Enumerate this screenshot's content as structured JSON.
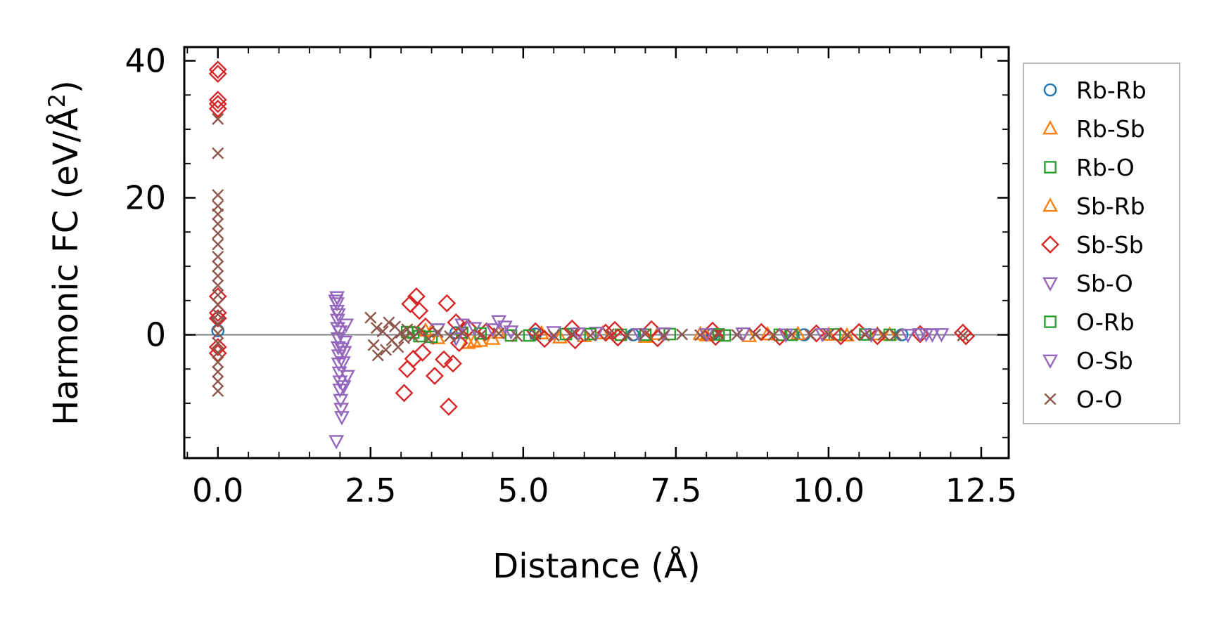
{
  "chart_data": {
    "type": "scatter",
    "title": "",
    "xlabel": "Distance (Å)",
    "ylabel": "Harmonic FC (eV/Å²)",
    "ylabel_main": "Harmonic FC (eV/Å",
    "ylabel_sup": "2",
    "ylabel_end": ")",
    "xlim": [
      -0.55,
      12.95
    ],
    "ylim": [
      -18,
      42
    ],
    "xticks": [
      0.0,
      2.5,
      5.0,
      7.5,
      10.0,
      12.5
    ],
    "xtick_labels": [
      "0.0",
      "2.5",
      "5.0",
      "7.5",
      "10.0",
      "12.5"
    ],
    "yticks": [
      0,
      20,
      40
    ],
    "ytick_labels": [
      "0",
      "20",
      "40"
    ],
    "reference_line_y": 0,
    "legend_position": "right, outside the axes",
    "series": [
      {
        "name": "Rb-Rb",
        "color": "#1f77b4",
        "marker": "circle",
        "points": [
          [
            0.0,
            2.4
          ],
          [
            0.0,
            0.6
          ],
          [
            3.9,
            0.3
          ],
          [
            5.2,
            0.1
          ],
          [
            6.8,
            0.0
          ],
          [
            8.1,
            0.05
          ],
          [
            9.6,
            0.0
          ],
          [
            11.2,
            0.0
          ]
        ]
      },
      {
        "name": "Rb-Sb",
        "color": "#ff7f0e",
        "marker": "triangle-up",
        "points": [
          [
            3.4,
            0.6
          ],
          [
            3.6,
            -0.5
          ],
          [
            4.1,
            -1.2
          ],
          [
            4.3,
            -0.9
          ],
          [
            4.6,
            0.3
          ],
          [
            5.6,
            -0.4
          ],
          [
            6.3,
            0.2
          ],
          [
            7.0,
            -0.3
          ],
          [
            7.9,
            0.1
          ],
          [
            8.7,
            -0.2
          ],
          [
            9.5,
            0.1
          ],
          [
            10.3,
            -0.1
          ],
          [
            11.0,
            0.0
          ]
        ]
      },
      {
        "name": "Rb-O",
        "color": "#2ca02c",
        "marker": "square",
        "points": [
          [
            3.1,
            0.4
          ],
          [
            3.3,
            -0.2
          ],
          [
            4.0,
            0.3
          ],
          [
            4.8,
            -0.1
          ],
          [
            5.7,
            0.1
          ],
          [
            6.6,
            0.0
          ],
          [
            7.4,
            0.1
          ],
          [
            8.3,
            -0.1
          ],
          [
            9.2,
            0.0
          ],
          [
            10.1,
            0.05
          ],
          [
            11.0,
            0.0
          ]
        ]
      },
      {
        "name": "Sb-Rb",
        "color": "#ff7f0e",
        "marker": "triangle-up",
        "points": [
          [
            3.5,
            0.5
          ],
          [
            4.2,
            -1.0
          ],
          [
            4.5,
            -0.6
          ],
          [
            5.3,
            0.2
          ],
          [
            6.0,
            -0.2
          ],
          [
            7.2,
            0.1
          ],
          [
            8.0,
            -0.1
          ],
          [
            9.0,
            0.05
          ],
          [
            10.0,
            0.0
          ],
          [
            10.8,
            0.05
          ]
        ]
      },
      {
        "name": "Sb-Sb",
        "color": "#d62728",
        "marker": "diamond",
        "points": [
          [
            0.0,
            38.7
          ],
          [
            0.0,
            38.1
          ],
          [
            0.0,
            34.3
          ],
          [
            0.0,
            33.7
          ],
          [
            0.0,
            33.0
          ],
          [
            0.0,
            5.6
          ],
          [
            0.0,
            3.2
          ],
          [
            0.0,
            2.4
          ],
          [
            0.0,
            -1.8
          ],
          [
            0.0,
            -2.7
          ],
          [
            3.05,
            -8.5
          ],
          [
            3.1,
            -5.0
          ],
          [
            3.15,
            4.5
          ],
          [
            3.2,
            -3.5
          ],
          [
            3.25,
            5.6
          ],
          [
            3.3,
            3.5
          ],
          [
            3.35,
            -2.6
          ],
          [
            3.4,
            1.2
          ],
          [
            3.55,
            -6.0
          ],
          [
            3.7,
            -3.6
          ],
          [
            3.75,
            4.6
          ],
          [
            3.78,
            -10.5
          ],
          [
            3.85,
            -4.2
          ],
          [
            3.9,
            1.8
          ],
          [
            3.95,
            -1.2
          ],
          [
            4.1,
            1.0
          ],
          [
            4.4,
            0.5
          ],
          [
            5.2,
            0.5
          ],
          [
            5.35,
            -0.6
          ],
          [
            5.8,
            0.9
          ],
          [
            5.85,
            -0.8
          ],
          [
            6.35,
            0.3
          ],
          [
            6.5,
            0.7
          ],
          [
            6.55,
            -0.4
          ],
          [
            7.1,
            0.8
          ],
          [
            7.2,
            -0.5
          ],
          [
            8.1,
            0.6
          ],
          [
            8.15,
            -0.3
          ],
          [
            8.9,
            0.4
          ],
          [
            9.2,
            -0.3
          ],
          [
            9.8,
            0.2
          ],
          [
            10.2,
            -0.2
          ],
          [
            10.5,
            0.4
          ],
          [
            10.8,
            -0.2
          ],
          [
            11.5,
            0.1
          ],
          [
            12.2,
            0.3
          ],
          [
            12.25,
            -0.2
          ]
        ]
      },
      {
        "name": "Sb-O",
        "color": "#9467bd",
        "marker": "triangle-down",
        "points": [
          [
            1.95,
            5.5
          ],
          [
            1.95,
            4.6
          ],
          [
            1.95,
            3.5
          ],
          [
            1.96,
            2.2
          ],
          [
            1.96,
            1.0
          ],
          [
            1.97,
            -0.5
          ],
          [
            1.97,
            -1.8
          ],
          [
            1.98,
            -3.0
          ],
          [
            1.98,
            -4.2
          ],
          [
            1.99,
            -5.5
          ],
          [
            2.0,
            -6.8
          ],
          [
            2.0,
            -8.0
          ],
          [
            2.01,
            -9.5
          ],
          [
            2.02,
            -10.8
          ],
          [
            2.03,
            -12.0
          ],
          [
            1.94,
            -15.5
          ],
          [
            2.05,
            -4.0
          ],
          [
            2.07,
            -2.5
          ],
          [
            2.08,
            -1.0
          ],
          [
            2.1,
            1.5
          ],
          [
            2.12,
            -6.0
          ],
          [
            4.0,
            1.5
          ],
          [
            4.5,
            0.8
          ],
          [
            4.6,
            2.0
          ],
          [
            4.7,
            1.2
          ],
          [
            5.5,
            0.4
          ],
          [
            6.2,
            0.3
          ],
          [
            7.3,
            0.2
          ],
          [
            8.6,
            0.2
          ],
          [
            9.9,
            0.1
          ],
          [
            11.5,
            0.1
          ],
          [
            11.7,
            0.05
          ],
          [
            11.85,
            0.1
          ]
        ]
      },
      {
        "name": "O-Rb",
        "color": "#2ca02c",
        "marker": "square",
        "points": [
          [
            3.2,
            0.3
          ],
          [
            3.5,
            -0.3
          ],
          [
            4.3,
            0.2
          ],
          [
            5.1,
            -0.1
          ],
          [
            6.1,
            0.1
          ],
          [
            7.0,
            0.0
          ],
          [
            8.2,
            0.05
          ],
          [
            9.4,
            0.0
          ],
          [
            10.6,
            0.05
          ]
        ]
      },
      {
        "name": "O-Sb",
        "color": "#9467bd",
        "marker": "triangle-down",
        "points": [
          [
            1.93,
            5.0
          ],
          [
            1.97,
            3.0
          ],
          [
            2.0,
            0.5
          ],
          [
            2.03,
            -2.0
          ],
          [
            2.06,
            -7.5
          ],
          [
            3.6,
            0.8
          ],
          [
            3.9,
            -0.5
          ],
          [
            4.2,
            1.0
          ],
          [
            4.8,
            0.5
          ],
          [
            5.9,
            0.2
          ],
          [
            6.9,
            0.1
          ],
          [
            8.0,
            0.1
          ],
          [
            9.3,
            0.05
          ],
          [
            10.7,
            0.05
          ],
          [
            11.3,
            0.0
          ],
          [
            11.6,
            0.1
          ]
        ]
      },
      {
        "name": "O-O",
        "color": "#8c564b",
        "marker": "x",
        "points": [
          [
            0.0,
            31.5
          ],
          [
            0.0,
            26.5
          ],
          [
            0.0,
            20.4
          ],
          [
            0.0,
            18.8
          ],
          [
            0.0,
            17.6
          ],
          [
            0.0,
            16.2
          ],
          [
            0.0,
            14.8
          ],
          [
            0.0,
            13.2
          ],
          [
            0.0,
            11.4
          ],
          [
            0.0,
            10.0
          ],
          [
            0.0,
            8.6
          ],
          [
            0.0,
            7.2
          ],
          [
            0.0,
            5.8
          ],
          [
            0.0,
            4.4
          ],
          [
            0.0,
            3.0
          ],
          [
            0.0,
            1.6
          ],
          [
            0.0,
            0.2
          ],
          [
            0.0,
            -1.2
          ],
          [
            0.0,
            -2.6
          ],
          [
            0.0,
            -4.0
          ],
          [
            0.0,
            -5.4
          ],
          [
            0.0,
            -6.8
          ],
          [
            0.0,
            -8.2
          ],
          [
            2.5,
            2.5
          ],
          [
            2.55,
            -1.5
          ],
          [
            2.6,
            1.0
          ],
          [
            2.62,
            -3.0
          ],
          [
            2.7,
            0.5
          ],
          [
            2.75,
            -2.2
          ],
          [
            2.8,
            1.8
          ],
          [
            2.85,
            -0.8
          ],
          [
            2.9,
            1.2
          ],
          [
            2.95,
            -1.8
          ],
          [
            3.0,
            0.3
          ],
          [
            3.05,
            -0.5
          ],
          [
            3.1,
            0.8
          ],
          [
            3.2,
            -0.3
          ],
          [
            3.3,
            0.5
          ],
          [
            3.45,
            -0.6
          ],
          [
            3.6,
            0.4
          ],
          [
            3.8,
            -0.2
          ],
          [
            4.0,
            0.3
          ],
          [
            4.3,
            -0.1
          ],
          [
            4.6,
            0.2
          ],
          [
            4.9,
            -0.2
          ],
          [
            5.2,
            0.1
          ],
          [
            5.5,
            -0.1
          ],
          [
            5.8,
            0.1
          ],
          [
            6.1,
            -0.1
          ],
          [
            6.4,
            0.1
          ],
          [
            6.7,
            -0.05
          ],
          [
            7.0,
            0.1
          ],
          [
            7.3,
            -0.1
          ],
          [
            7.6,
            0.05
          ],
          [
            7.9,
            -0.05
          ],
          [
            8.2,
            0.05
          ],
          [
            8.5,
            0.0
          ],
          [
            8.8,
            0.05
          ],
          [
            9.1,
            -0.05
          ],
          [
            9.4,
            0.05
          ],
          [
            9.7,
            0.0
          ],
          [
            10.0,
            0.05
          ],
          [
            10.3,
            -0.05
          ],
          [
            10.6,
            0.0
          ],
          [
            10.9,
            0.0
          ],
          [
            11.1,
            0.0
          ],
          [
            12.2,
            -0.1
          ]
        ]
      }
    ]
  }
}
